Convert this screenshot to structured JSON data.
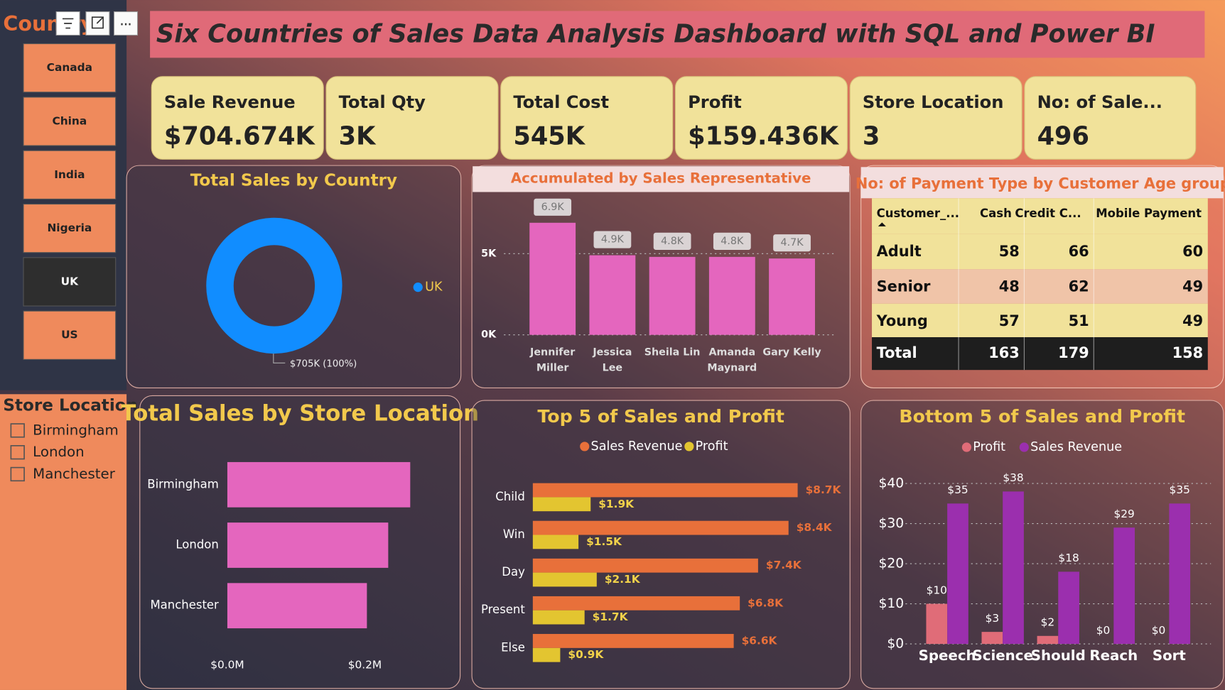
{
  "title": "Six Countries of Sales Data Analysis Dashboard with SQL and Power BI",
  "country_slicer": {
    "title": "Country",
    "items": [
      "Canada",
      "China",
      "India",
      "Nigeria",
      "UK",
      "US"
    ],
    "selected": 4
  },
  "store_slicer": {
    "title": "Store Location",
    "items": [
      "Birmingham",
      "London",
      "Manchester"
    ]
  },
  "kpis": [
    {
      "label": "Sale Revenue",
      "value": "$704.674K"
    },
    {
      "label": "Total Qty",
      "value": "3K"
    },
    {
      "label": "Total Cost",
      "value": "545K"
    },
    {
      "label": "Profit",
      "value": "$159.436K"
    },
    {
      "label": "Store Location",
      "value": "3"
    },
    {
      "label": "No: of Sale...",
      "value": "496"
    }
  ],
  "table": {
    "title": "No: of Payment Type by Customer Age group",
    "header": [
      "Customer_...",
      "Cash",
      "Credit C...",
      "Mobile Payment"
    ],
    "rows": [
      [
        "Adult",
        58,
        66,
        60
      ],
      [
        "Senior",
        48,
        62,
        49
      ],
      [
        "Young",
        57,
        51,
        49
      ]
    ],
    "total": [
      "Total",
      163,
      179,
      158
    ]
  },
  "chart_data": [
    {
      "type": "pie",
      "title": "Total Sales by Country",
      "categories": [
        "UK"
      ],
      "values": [
        705
      ],
      "value_labels": [
        "$705K (100%)"
      ],
      "colors": [
        "#118dff"
      ],
      "donut": true,
      "legend": "right"
    },
    {
      "type": "bar",
      "title": "Accumulated by Sales Representative",
      "orientation": "vertical",
      "categories": [
        "Jennifer Miller",
        "Jessica Lee",
        "Sheila Lin",
        "Amanda Maynard",
        "Gary Kelly"
      ],
      "values": [
        6.9,
        4.9,
        4.8,
        4.8,
        4.7
      ],
      "value_labels": [
        "6.9K",
        "4.9K",
        "4.8K",
        "4.8K",
        "4.7K"
      ],
      "color": "#e466be",
      "ylim": [
        0,
        8.6
      ],
      "yticks": [
        {
          "value": 0,
          "label": "0K"
        },
        {
          "value": 5,
          "label": "5K"
        }
      ],
      "grid": true
    },
    {
      "type": "bar",
      "title": "Total Sales by Store Location",
      "orientation": "horizontal",
      "categories": [
        "Birmingham",
        "London",
        "Manchester"
      ],
      "values": [
        0.266,
        0.234,
        0.203
      ],
      "color": "#e466be",
      "xlim": [
        0,
        0.3
      ],
      "xticks": [
        {
          "value": 0,
          "label": "$0.0M"
        },
        {
          "value": 0.2,
          "label": "$0.2M"
        }
      ]
    },
    {
      "type": "bar",
      "title": "Top 5 of Sales and Profit",
      "orientation": "horizontal",
      "legend": "top",
      "categories": [
        "Child",
        "Win",
        "Day",
        "Present",
        "Else"
      ],
      "series": [
        {
          "name": "Sales Revenue",
          "color": "#e8703a",
          "values": [
            8.7,
            8.4,
            7.4,
            6.8,
            6.6
          ],
          "value_labels": [
            "$8.7K",
            "$8.4K",
            "$7.4K",
            "$6.8K",
            "$6.6K"
          ]
        },
        {
          "name": "Profit",
          "color": "#e3c530",
          "values": [
            1.9,
            1.5,
            2.1,
            1.7,
            0.9
          ],
          "value_labels": [
            "$1.9K",
            "$1.5K",
            "$2.1K",
            "$1.7K",
            "$0.9K"
          ]
        }
      ]
    },
    {
      "type": "bar",
      "title": "Bottom 5 of Sales and Profit",
      "orientation": "vertical",
      "legend": "top",
      "categories": [
        "Speech",
        "Science",
        "Should",
        "Reach",
        "Sort"
      ],
      "series": [
        {
          "name": "Profit",
          "color": "#e06c78",
          "values": [
            10,
            3,
            2,
            0,
            0
          ],
          "value_labels": [
            "$10",
            "$3",
            "$2",
            "$0",
            "$0"
          ]
        },
        {
          "name": "Sales Revenue",
          "color": "#9b2fae",
          "values": [
            35,
            38,
            18,
            29,
            35
          ],
          "value_labels": [
            "$35",
            "$38",
            "$18",
            "$29",
            "$35"
          ]
        }
      ],
      "ylim": [
        0,
        43
      ],
      "yticks": [
        {
          "value": 0,
          "label": "$0"
        },
        {
          "value": 10,
          "label": "$10"
        },
        {
          "value": 20,
          "label": "$20"
        },
        {
          "value": 30,
          "label": "$30"
        },
        {
          "value": 40,
          "label": "$40"
        }
      ],
      "grid": true
    }
  ]
}
